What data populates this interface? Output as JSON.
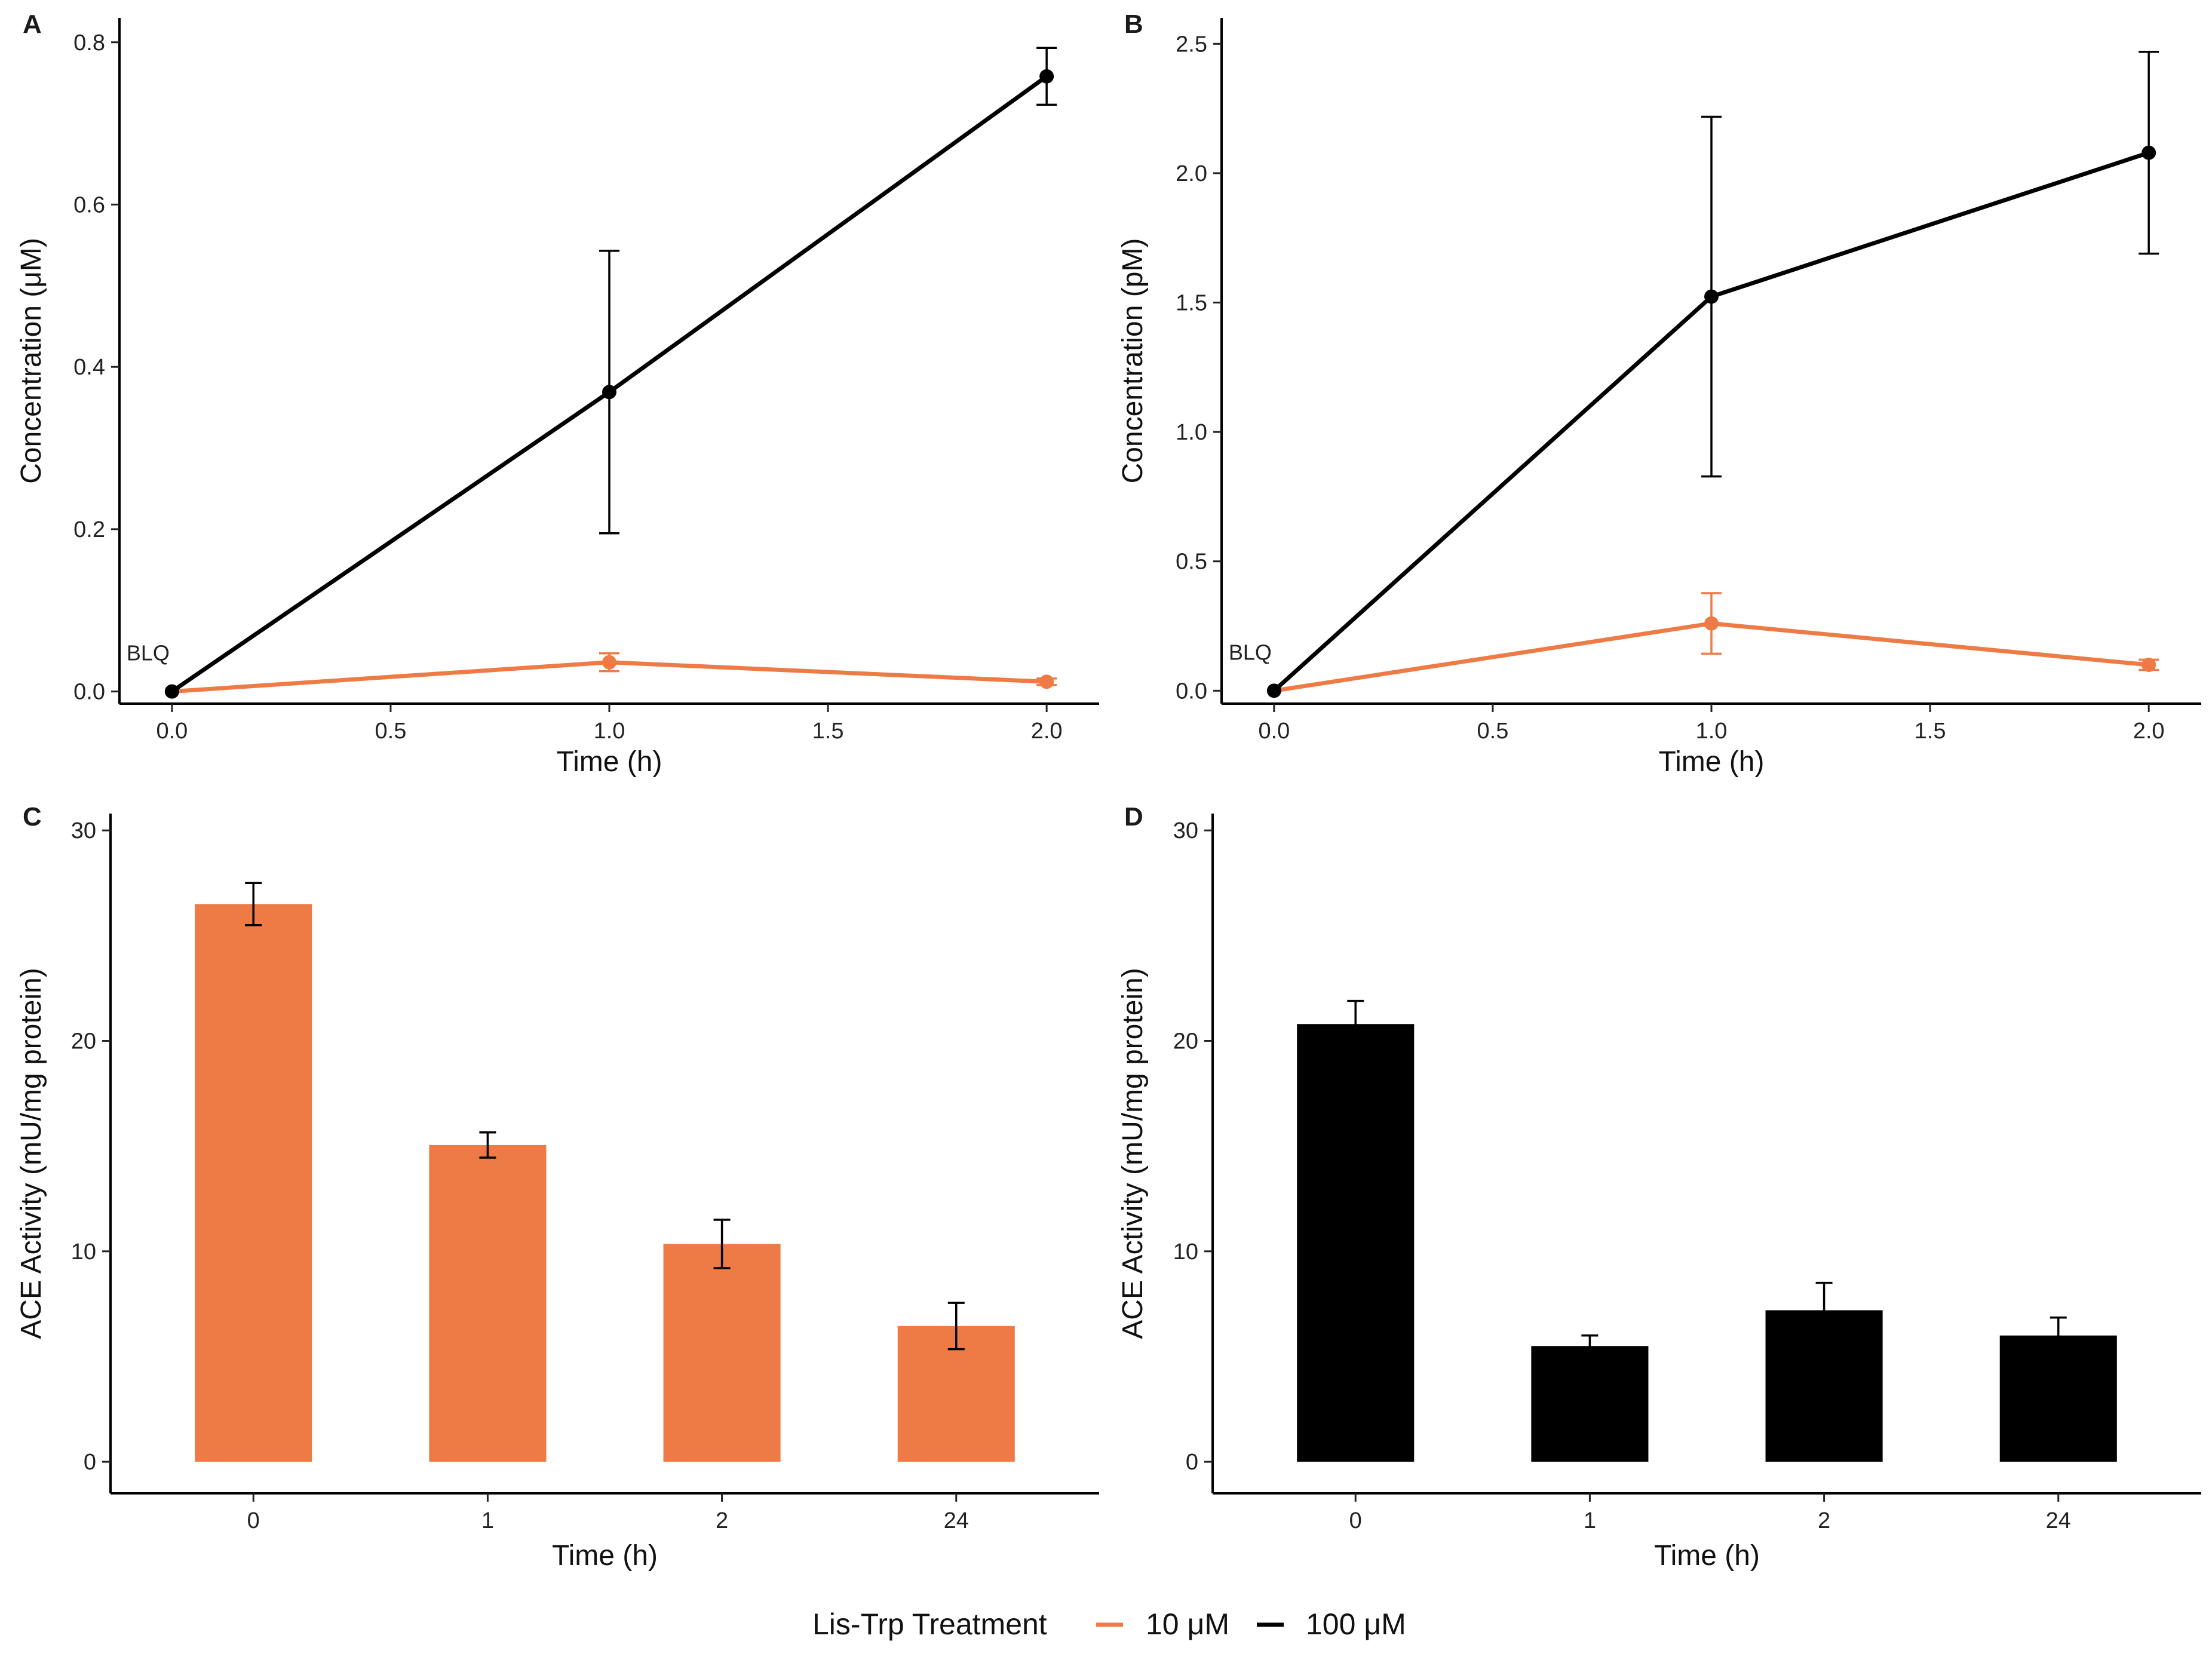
{
  "legend": {
    "title": "Lis-Trp Treatment",
    "entries": [
      {
        "label": "10 μM",
        "color": "#EE7B45"
      },
      {
        "label": "100 μM",
        "color": "#000000"
      }
    ]
  },
  "chart_data": [
    {
      "panel": "A",
      "type": "line",
      "xlabel": "Time (h)",
      "ylabel": "Concentration (μM)",
      "xlim": [
        -0.12,
        2.12
      ],
      "ylim": [
        -0.015,
        0.83
      ],
      "xticks": [
        0.0,
        0.5,
        1.0,
        1.5,
        2.0
      ],
      "xtick_labels": [
        "0.0",
        "0.5",
        "1.0",
        "1.5",
        "2.0"
      ],
      "yticks": [
        0.0,
        0.2,
        0.4,
        0.6,
        0.8
      ],
      "ytick_labels": [
        "0.0",
        "0.2",
        "0.4",
        "0.6",
        "0.8"
      ],
      "annotation": {
        "text": "BLQ",
        "x": 0.0,
        "y": 0.0
      },
      "series": [
        {
          "name": "10 μM",
          "color": "#EE7B45",
          "x": [
            0,
            1,
            2
          ],
          "y": [
            0.0,
            0.036,
            0.012
          ],
          "err": [
            0.0,
            0.011,
            0.004
          ]
        },
        {
          "name": "100 μM",
          "color": "#000000",
          "x": [
            0,
            1,
            2
          ],
          "y": [
            0.0,
            0.369,
            0.758
          ],
          "err": [
            0.0,
            0.174,
            0.035
          ]
        }
      ]
    },
    {
      "panel": "B",
      "type": "line",
      "xlabel": "Time (h)",
      "ylabel": "Concentration (pM)",
      "xlim": [
        -0.12,
        2.12
      ],
      "ylim": [
        -0.05,
        2.6
      ],
      "xticks": [
        0.0,
        0.5,
        1.0,
        1.5,
        2.0
      ],
      "xtick_labels": [
        "0.0",
        "0.5",
        "1.0",
        "1.5",
        "2.0"
      ],
      "yticks": [
        0.0,
        0.5,
        1.0,
        1.5,
        2.0,
        2.5
      ],
      "ytick_labels": [
        "0.0",
        "0.5",
        "1.0",
        "1.5",
        "2.0",
        "2.5"
      ],
      "annotation": {
        "text": "BLQ",
        "x": 0.0,
        "y": 0.0
      },
      "series": [
        {
          "name": "10 μM",
          "color": "#EE7B45",
          "x": [
            0,
            1,
            2
          ],
          "y": [
            0.0,
            0.26,
            0.1
          ],
          "err": [
            0.0,
            0.117,
            0.02
          ]
        },
        {
          "name": "100 μM",
          "color": "#000000",
          "x": [
            0,
            1,
            2
          ],
          "y": [
            0.0,
            1.523,
            2.079
          ],
          "err": [
            0.0,
            0.695,
            0.39
          ]
        }
      ]
    },
    {
      "panel": "C",
      "type": "bar",
      "xlabel": "Time (h)",
      "ylabel": "ACE Activity (mU/mg protein)",
      "ylim": [
        -1.5,
        30.8
      ],
      "categories": [
        "0",
        "1",
        "2",
        "24"
      ],
      "yticks": [
        0,
        10,
        20,
        30
      ],
      "ytick_labels": [
        "0",
        "10",
        "20",
        "30"
      ],
      "series": [
        {
          "name": "10 μM",
          "color": "#EE7B45",
          "values": [
            26.5,
            15.05,
            10.35,
            6.45
          ],
          "err": [
            1.0,
            0.6,
            1.15,
            1.1
          ]
        }
      ]
    },
    {
      "panel": "D",
      "type": "bar",
      "xlabel": "Time (h)",
      "ylabel": "ACE Activity (mU/mg protein)",
      "ylim": [
        -1.5,
        30.8
      ],
      "categories": [
        "0",
        "1",
        "2",
        "24"
      ],
      "yticks": [
        0,
        10,
        20,
        30
      ],
      "ytick_labels": [
        "0",
        "10",
        "20",
        "30"
      ],
      "series": [
        {
          "name": "100 μM",
          "color": "#000000",
          "values": [
            20.8,
            5.5,
            7.2,
            6.0
          ],
          "err": [
            1.1,
            0.5,
            1.3,
            0.85
          ]
        }
      ]
    }
  ]
}
